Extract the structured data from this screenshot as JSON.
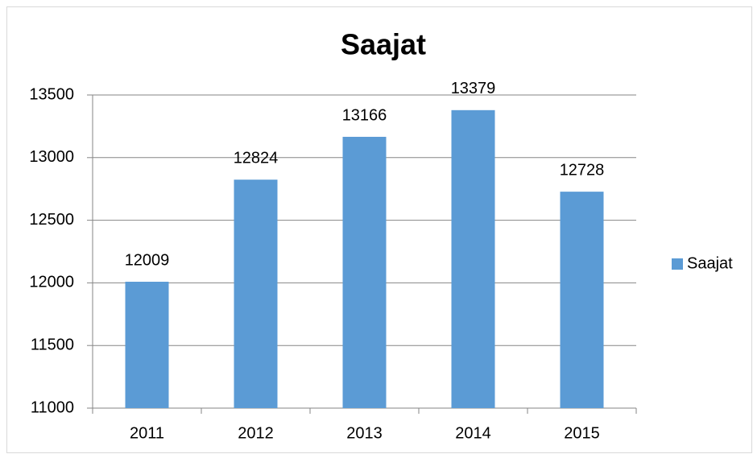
{
  "chart_data": {
    "type": "bar",
    "title": "Saajat",
    "categories": [
      "2011",
      "2012",
      "2013",
      "2014",
      "2015"
    ],
    "series": [
      {
        "name": "Saajat",
        "color": "#5b9bd5",
        "values": [
          12009,
          12824,
          13166,
          13379,
          12728
        ]
      }
    ],
    "ylim": [
      11000,
      13500
    ],
    "yticks": [
      11000,
      11500,
      12000,
      12500,
      13000,
      13500
    ],
    "grid": true,
    "legend": "right"
  }
}
